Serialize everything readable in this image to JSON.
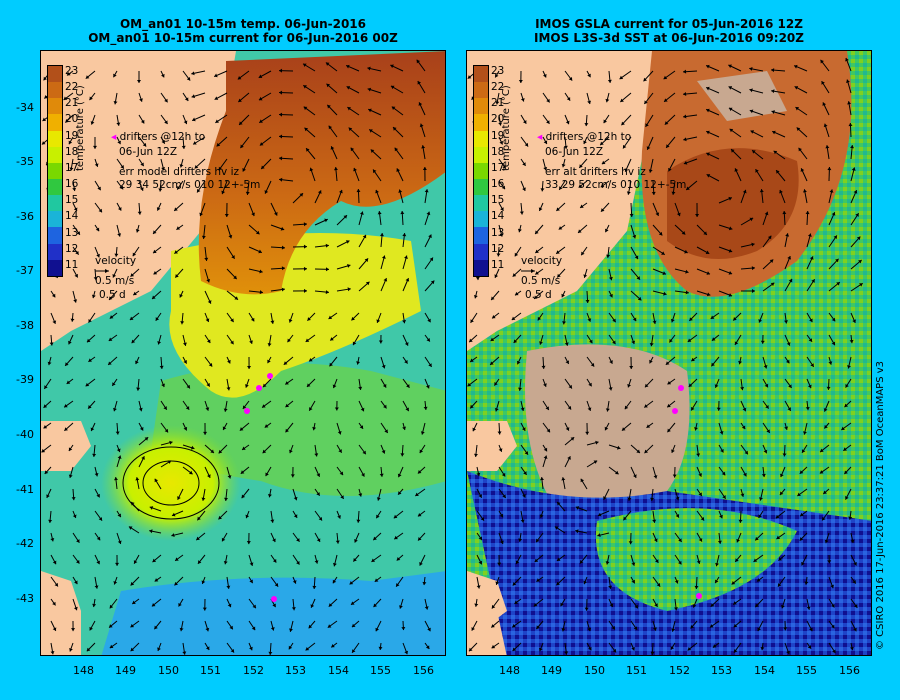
{
  "left": {
    "title_line1": "OM_an01 10-15m temp. 06-Jun-2016",
    "title_line2": "OM_an01 10-15m current for 06-Jun-2016 00Z",
    "drifters_line1": "drifters @12h to",
    "drifters_line2": "06-Jun 12Z",
    "err_line1": "err model drifters hv iz",
    "err_line2": "29 34 52cm/s 010 12+-5m",
    "velocity_label": "velocity",
    "velocity_scale": "0.5 m/s",
    "velocity_days": "0.5 d"
  },
  "right": {
    "title_line1": "IMOS GSLA current for 05-Jun-2016 12Z",
    "title_line2": "IMOS L3S-3d SST at 06-Jun-2016 09:20Z",
    "drifters_line1": "drifters @12h to",
    "drifters_line2": "06-Jun 12Z",
    "err_line1": "err alt drifters hv iz",
    "err_line2": "33 29 52cm/s 010 12+-5m",
    "velocity_label": "velocity",
    "velocity_scale": "0.5 m/s",
    "velocity_days": "0.5 d"
  },
  "colorbar": {
    "ticks": [
      "23",
      "22",
      "21",
      "20",
      "19",
      "18",
      "17",
      "16",
      "15",
      "14",
      "13",
      "12",
      "11"
    ],
    "unit": "temperature (°C)",
    "colors": [
      "#b2501a",
      "#cc6a14",
      "#e08a0a",
      "#f0b000",
      "#e8e800",
      "#c8f000",
      "#7ad800",
      "#30c840",
      "#20c8a0",
      "#1ab4d8",
      "#1e64e0",
      "#2030c8",
      "#101090"
    ]
  },
  "axes": {
    "lat_labels": [
      "-34",
      "-35",
      "-36",
      "-37",
      "-38",
      "-39",
      "-40",
      "-41",
      "-42",
      "-43"
    ],
    "lon_labels": [
      "148",
      "149",
      "150",
      "151",
      "152",
      "153",
      "154",
      "155",
      "156"
    ]
  },
  "credit": "© CSIRO 2016   17-Jun-2016 23:37:21 BoM OceanMAPS v3",
  "colors": {
    "background": "#00ccff",
    "land": "#f9c8a0",
    "cloud": "#c8a890",
    "drifter": "#ff00ff"
  }
}
